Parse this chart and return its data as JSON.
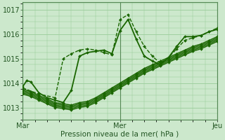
{
  "xlabel": "Pression niveau de la mer( hPa )",
  "bg_color": "#cce8cc",
  "plot_bg_color": "#cce8cc",
  "grid_color": "#99cc99",
  "line_color": "#1a6600",
  "marker_color": "#1a6600",
  "xlim": [
    0,
    48
  ],
  "ylim": [
    1012.5,
    1017.3
  ],
  "yticks": [
    1013,
    1014,
    1015,
    1016,
    1017
  ],
  "xticks": [
    0,
    24,
    48
  ],
  "xticklabels": [
    "Mar",
    "Mer",
    "Jeu"
  ],
  "figsize": [
    3.2,
    2.0
  ],
  "dpi": 100,
  "series": [
    {
      "x": [
        0,
        1,
        2,
        4,
        6,
        8,
        10,
        12,
        14,
        16,
        18,
        20,
        22,
        24,
        26,
        28,
        30,
        32,
        34,
        36,
        38,
        40,
        42,
        44,
        46,
        48
      ],
      "y": [
        1013.85,
        1014.1,
        1014.05,
        1013.6,
        1013.4,
        1013.3,
        1013.2,
        1013.7,
        1015.1,
        1015.25,
        1015.3,
        1015.35,
        1015.2,
        1016.15,
        1016.6,
        1015.8,
        1015.1,
        1014.9,
        1014.75,
        1015.05,
        1015.5,
        1015.9,
        1015.9,
        1015.95,
        1016.1,
        1016.2
      ],
      "lw": 1.3,
      "dashed": false
    },
    {
      "x": [
        0,
        4,
        8,
        10,
        12,
        14,
        16,
        18,
        20,
        22,
        24,
        26,
        28,
        30,
        32,
        34,
        36,
        38,
        40,
        42,
        44,
        46,
        48
      ],
      "y": [
        1013.8,
        1013.55,
        1013.4,
        1015.0,
        1015.2,
        1015.35,
        1015.4,
        1015.35,
        1015.25,
        1015.15,
        1016.6,
        1016.8,
        1016.1,
        1015.5,
        1015.1,
        1014.8,
        1015.05,
        1015.4,
        1015.75,
        1015.85,
        1015.95,
        1016.1,
        1016.25
      ],
      "lw": 1.0,
      "dashed": true
    },
    {
      "x": [
        0,
        2,
        4,
        6,
        8,
        10,
        12,
        14,
        16,
        18,
        20,
        22,
        24,
        26,
        28,
        30,
        32,
        34,
        36,
        38,
        40,
        42,
        44,
        46,
        48
      ],
      "y": [
        1013.75,
        1013.65,
        1013.5,
        1013.35,
        1013.2,
        1013.15,
        1013.1,
        1013.2,
        1013.25,
        1013.4,
        1013.6,
        1013.8,
        1014.0,
        1014.2,
        1014.4,
        1014.6,
        1014.75,
        1014.9,
        1015.05,
        1015.2,
        1015.35,
        1015.5,
        1015.6,
        1015.75,
        1015.9
      ],
      "lw": 1.0,
      "dashed": false
    },
    {
      "x": [
        0,
        2,
        4,
        6,
        8,
        10,
        12,
        14,
        16,
        18,
        20,
        22,
        24,
        26,
        28,
        30,
        32,
        34,
        36,
        38,
        40,
        42,
        44,
        46,
        48
      ],
      "y": [
        1013.7,
        1013.6,
        1013.45,
        1013.3,
        1013.15,
        1013.1,
        1013.05,
        1013.15,
        1013.2,
        1013.35,
        1013.55,
        1013.75,
        1013.95,
        1014.15,
        1014.35,
        1014.55,
        1014.7,
        1014.85,
        1015.0,
        1015.15,
        1015.3,
        1015.45,
        1015.55,
        1015.7,
        1015.85
      ],
      "lw": 1.0,
      "dashed": false
    },
    {
      "x": [
        0,
        2,
        4,
        6,
        8,
        10,
        12,
        14,
        16,
        18,
        20,
        22,
        24,
        26,
        28,
        30,
        32,
        34,
        36,
        38,
        40,
        42,
        44,
        46,
        48
      ],
      "y": [
        1013.65,
        1013.55,
        1013.4,
        1013.25,
        1013.1,
        1013.05,
        1013.0,
        1013.1,
        1013.15,
        1013.3,
        1013.5,
        1013.7,
        1013.9,
        1014.1,
        1014.3,
        1014.5,
        1014.65,
        1014.8,
        1014.95,
        1015.1,
        1015.25,
        1015.4,
        1015.5,
        1015.65,
        1015.8
      ],
      "lw": 1.0,
      "dashed": false
    },
    {
      "x": [
        0,
        2,
        4,
        6,
        8,
        10,
        12,
        14,
        16,
        18,
        20,
        22,
        24,
        26,
        28,
        30,
        32,
        34,
        36,
        38,
        40,
        42,
        44,
        46,
        48
      ],
      "y": [
        1013.6,
        1013.5,
        1013.35,
        1013.2,
        1013.05,
        1013.0,
        1012.95,
        1013.05,
        1013.1,
        1013.25,
        1013.45,
        1013.65,
        1013.85,
        1014.05,
        1014.25,
        1014.45,
        1014.6,
        1014.75,
        1014.9,
        1015.05,
        1015.2,
        1015.35,
        1015.45,
        1015.6,
        1015.75
      ],
      "lw": 1.0,
      "dashed": false
    },
    {
      "x": [
        0,
        2,
        4,
        6,
        8,
        10,
        12,
        14,
        16,
        18,
        20,
        22,
        24,
        26,
        28,
        30,
        32,
        34,
        36,
        38,
        40,
        42,
        44,
        46,
        48
      ],
      "y": [
        1013.55,
        1013.45,
        1013.3,
        1013.15,
        1013.0,
        1012.95,
        1012.9,
        1013.0,
        1013.05,
        1013.2,
        1013.4,
        1013.6,
        1013.8,
        1014.0,
        1014.2,
        1014.4,
        1014.55,
        1014.7,
        1014.85,
        1015.0,
        1015.15,
        1015.3,
        1015.4,
        1015.55,
        1015.7
      ],
      "lw": 1.0,
      "dashed": false
    }
  ]
}
